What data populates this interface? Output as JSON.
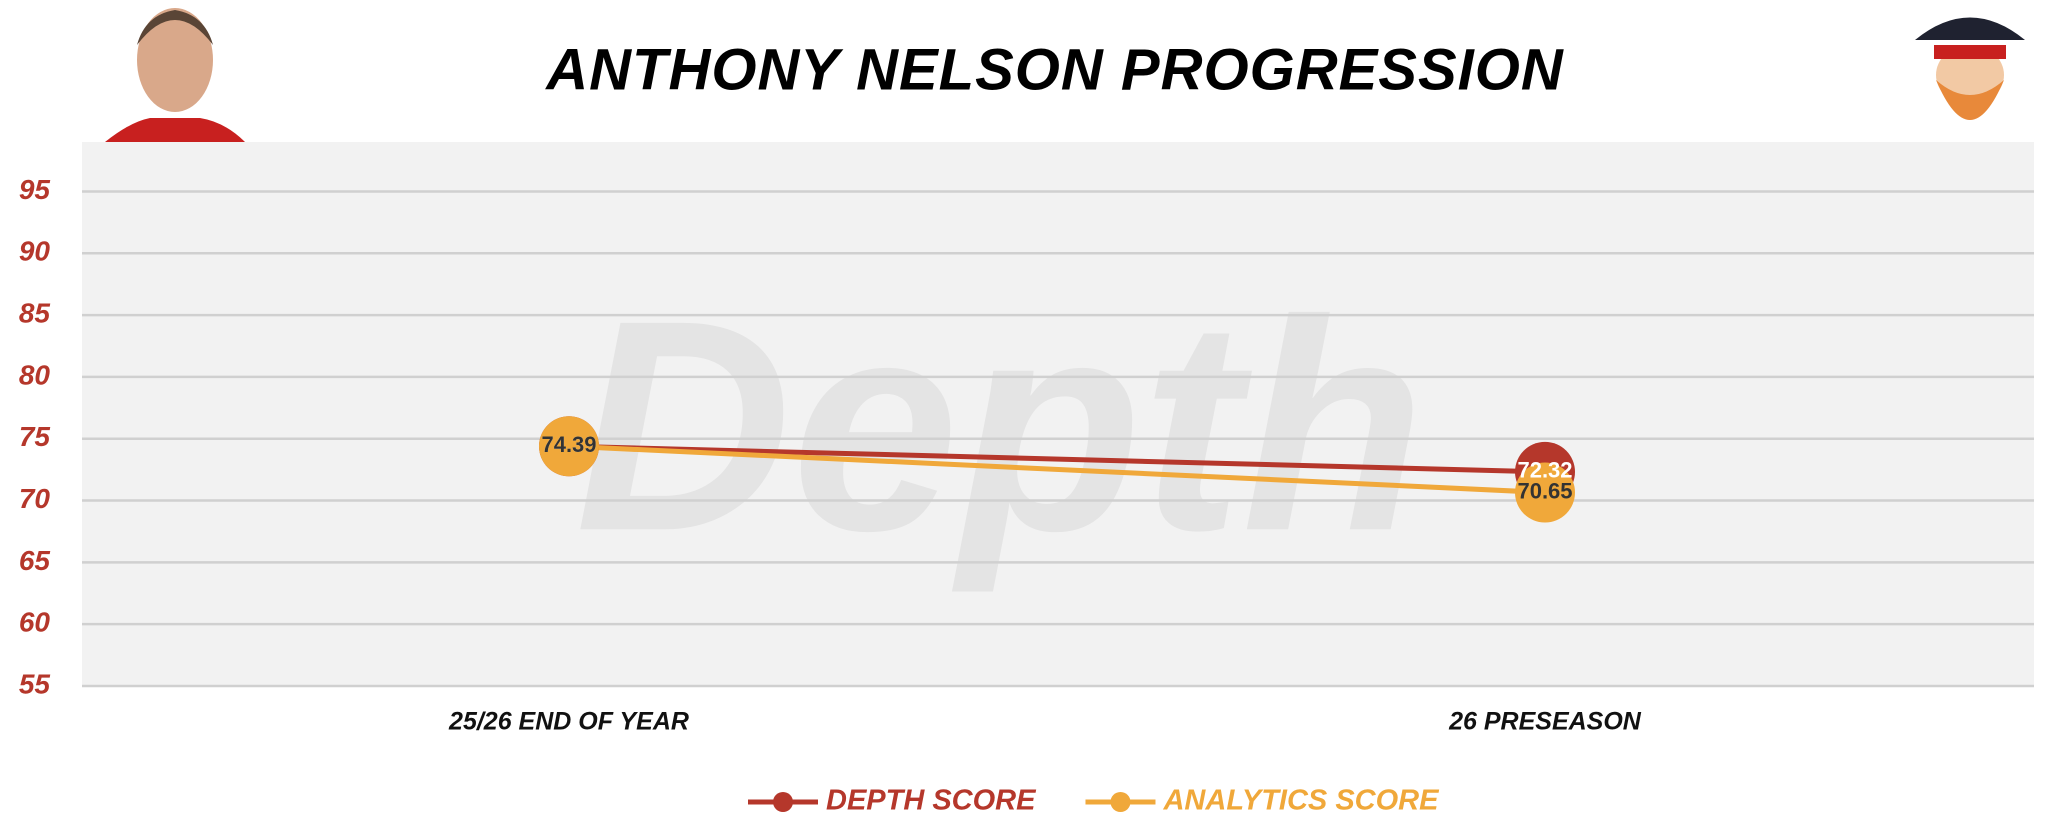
{
  "chart_data": {
    "type": "line",
    "title": "ANTHONY NELSON PROGRESSION",
    "watermark": "Depth",
    "categories": [
      "25/26 END OF YEAR",
      "26 PRESEASON"
    ],
    "series": [
      {
        "name": "DEPTH SCORE",
        "color": "#b5372b",
        "values": [
          74.39,
          72.32
        ]
      },
      {
        "name": "ANALYTICS SCORE",
        "color": "#f0a83a",
        "values": [
          74.39,
          70.65
        ]
      }
    ],
    "ylim": [
      55,
      99
    ],
    "yticks": [
      55,
      60,
      65,
      70,
      75,
      80,
      85,
      90,
      95
    ],
    "grid": true,
    "legend": "bottom"
  }
}
